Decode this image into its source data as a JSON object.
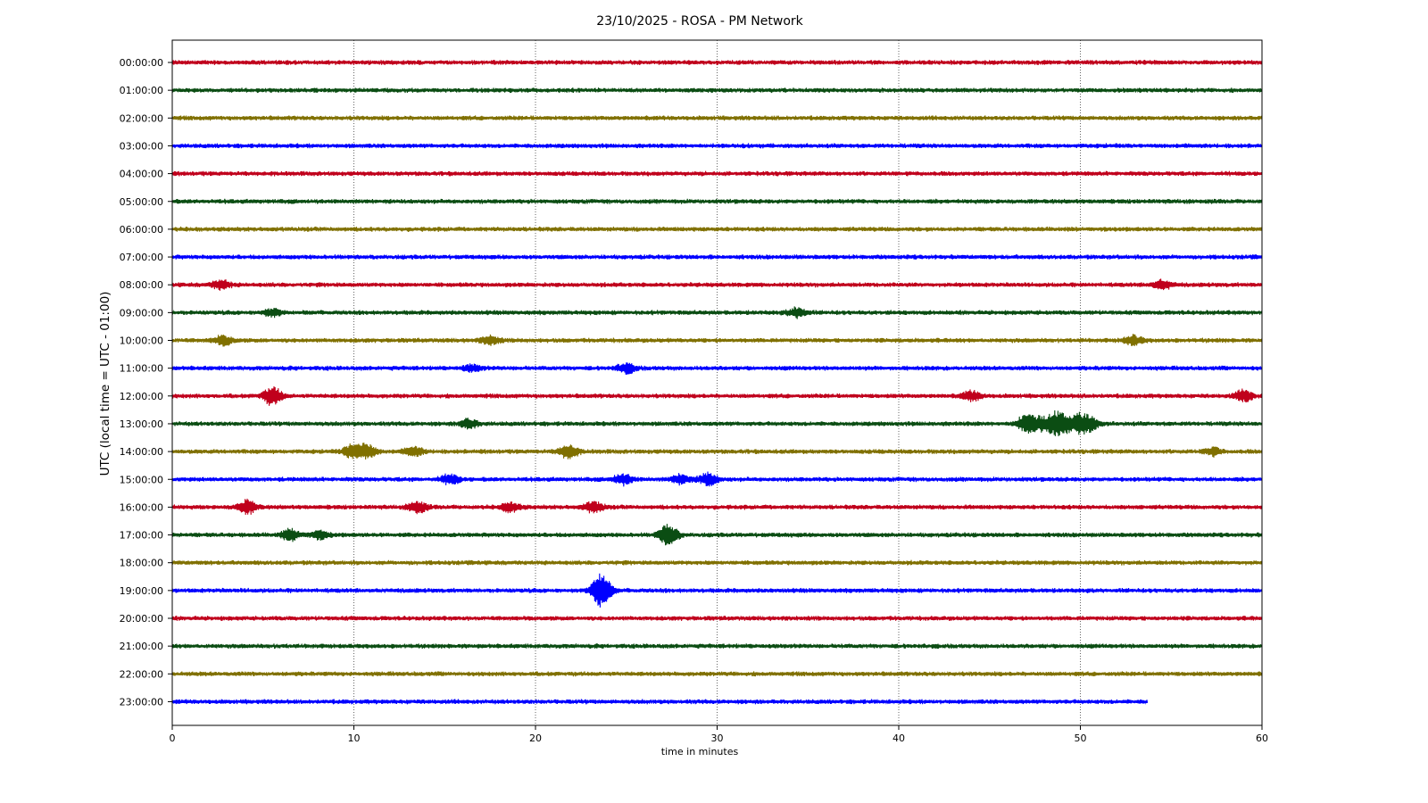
{
  "chart_data": {
    "type": "line",
    "chart_kind": "helicorder",
    "title": "23/10/2025 - ROSA - PM Network",
    "xlabel": "time in minutes",
    "ylabel": "UTC (local time = UTC - 01:00)",
    "xlim": [
      0,
      60
    ],
    "x_ticks": [
      0,
      10,
      20,
      30,
      40,
      50,
      60
    ],
    "grid": "vertical dotted lines at x ticks",
    "trace_colors": [
      "#c0001c",
      "#0b4d13",
      "#807000",
      "#0000ff"
    ],
    "rows": [
      {
        "label": "00:00:00",
        "end_minute": 60,
        "events": []
      },
      {
        "label": "01:00:00",
        "end_minute": 60,
        "events": []
      },
      {
        "label": "02:00:00",
        "end_minute": 60,
        "events": []
      },
      {
        "label": "03:00:00",
        "end_minute": 60,
        "events": []
      },
      {
        "label": "04:00:00",
        "end_minute": 60,
        "events": []
      },
      {
        "label": "05:00:00",
        "end_minute": 60,
        "events": []
      },
      {
        "label": "06:00:00",
        "end_minute": 60,
        "events": []
      },
      {
        "label": "07:00:00",
        "end_minute": 60,
        "events": []
      },
      {
        "label": "08:00:00",
        "end_minute": 60,
        "events": [
          {
            "t": 2.7,
            "a": 0.3
          },
          {
            "t": 54.5,
            "a": 0.3
          }
        ]
      },
      {
        "label": "09:00:00",
        "end_minute": 60,
        "events": [
          {
            "t": 34.4,
            "a": 0.3
          },
          {
            "t": 5.5,
            "a": 0.25
          }
        ]
      },
      {
        "label": "10:00:00",
        "end_minute": 60,
        "events": [
          {
            "t": 2.8,
            "a": 0.3
          },
          {
            "t": 17.5,
            "a": 0.25
          },
          {
            "t": 52.9,
            "a": 0.3
          }
        ]
      },
      {
        "label": "11:00:00",
        "end_minute": 60,
        "events": [
          {
            "t": 25.0,
            "a": 0.3
          },
          {
            "t": 16.5,
            "a": 0.2
          }
        ]
      },
      {
        "label": "12:00:00",
        "end_minute": 60,
        "events": [
          {
            "t": 5.5,
            "a": 0.6
          },
          {
            "t": 44.0,
            "a": 0.3
          },
          {
            "t": 59.0,
            "a": 0.35
          }
        ]
      },
      {
        "label": "13:00:00",
        "end_minute": 60,
        "events": [
          {
            "t": 16.3,
            "a": 0.3
          },
          {
            "t": 47.0,
            "a": 0.55
          },
          {
            "t": 47.8,
            "a": 0.4
          },
          {
            "t": 48.6,
            "a": 0.5
          },
          {
            "t": 49.0,
            "a": 0.45
          },
          {
            "t": 49.9,
            "a": 0.55
          },
          {
            "t": 50.5,
            "a": 0.4
          }
        ]
      },
      {
        "label": "14:00:00",
        "end_minute": 60,
        "events": [
          {
            "t": 9.9,
            "a": 0.45
          },
          {
            "t": 10.7,
            "a": 0.45
          },
          {
            "t": 13.3,
            "a": 0.3
          },
          {
            "t": 21.8,
            "a": 0.45
          },
          {
            "t": 57.3,
            "a": 0.25
          }
        ]
      },
      {
        "label": "15:00:00",
        "end_minute": 60,
        "events": [
          {
            "t": 24.8,
            "a": 0.35
          },
          {
            "t": 29.5,
            "a": 0.4
          },
          {
            "t": 15.3,
            "a": 0.3
          },
          {
            "t": 28.0,
            "a": 0.3
          }
        ]
      },
      {
        "label": "16:00:00",
        "end_minute": 60,
        "events": [
          {
            "t": 4.1,
            "a": 0.45
          },
          {
            "t": 13.5,
            "a": 0.35
          },
          {
            "t": 23.2,
            "a": 0.35
          },
          {
            "t": 18.6,
            "a": 0.3
          }
        ]
      },
      {
        "label": "17:00:00",
        "end_minute": 60,
        "events": [
          {
            "t": 27.3,
            "a": 0.7
          },
          {
            "t": 6.5,
            "a": 0.35
          },
          {
            "t": 8.1,
            "a": 0.25
          }
        ]
      },
      {
        "label": "18:00:00",
        "end_minute": 60,
        "events": []
      },
      {
        "label": "19:00:00",
        "end_minute": 60,
        "events": [
          {
            "t": 23.6,
            "a": 1.2
          }
        ]
      },
      {
        "label": "20:00:00",
        "end_minute": 60,
        "events": []
      },
      {
        "label": "21:00:00",
        "end_minute": 60,
        "events": []
      },
      {
        "label": "22:00:00",
        "end_minute": 60,
        "events": []
      },
      {
        "label": "23:00:00",
        "end_minute": 53.7,
        "events": []
      }
    ]
  }
}
